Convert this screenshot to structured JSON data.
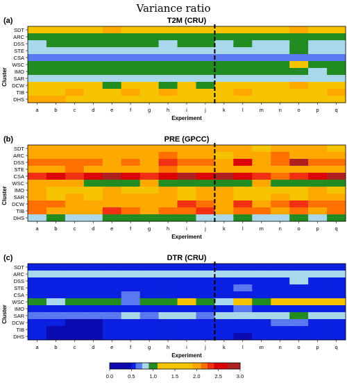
{
  "figure": {
    "title": "Variance ratio"
  },
  "palette": {
    "levels": [
      "#0a0ab0",
      "#0b20e0",
      "#5a78f0",
      "#a8d8ea",
      "#228b22",
      "#f5c400",
      "#ffa800",
      "#ff7000",
      "#f03010",
      "#dd0000",
      "#b02020"
    ],
    "default_level": 3
  },
  "chart_data": [
    {
      "type": "heatmap",
      "panel_label": "(a)",
      "title": "T2M (CRU)",
      "xlabel": "Experiment",
      "ylabel": "Cluster",
      "x": [
        "a",
        "b",
        "c",
        "d",
        "e",
        "f",
        "g",
        "h",
        "i",
        "j",
        "k",
        "l",
        "m",
        "n",
        "o",
        "p",
        "q"
      ],
      "y": [
        "SDT",
        "ARC",
        "DSS",
        "STE",
        "CSA",
        "WSC",
        "IMO",
        "SAR",
        "DCW",
        "TIB",
        "DHS"
      ],
      "divider_after_index": 9,
      "cells": [
        [
          5,
          5,
          5,
          5,
          6,
          5,
          5,
          5,
          5,
          5,
          5,
          5,
          5,
          5,
          6,
          5,
          5
        ],
        [
          4,
          4,
          4,
          4,
          4,
          4,
          4,
          4,
          4,
          4,
          4,
          4,
          4,
          4,
          4,
          4,
          4
        ],
        [
          3,
          4,
          4,
          4,
          4,
          4,
          4,
          3,
          4,
          4,
          3,
          4,
          3,
          3,
          4,
          3,
          3
        ],
        [
          3,
          3,
          3,
          3,
          3,
          3,
          3,
          3,
          3,
          3,
          3,
          3,
          3,
          3,
          4,
          3,
          3
        ],
        [
          2,
          2,
          2,
          2,
          2,
          2,
          2,
          2,
          2,
          2,
          2,
          2,
          2,
          2,
          2,
          2,
          2
        ],
        [
          4,
          4,
          4,
          4,
          4,
          4,
          4,
          4,
          4,
          4,
          4,
          4,
          4,
          4,
          5,
          4,
          4
        ],
        [
          4,
          4,
          4,
          4,
          4,
          4,
          4,
          4,
          4,
          4,
          4,
          4,
          4,
          4,
          4,
          3,
          4
        ],
        [
          3,
          3,
          3,
          3,
          3,
          3,
          3,
          3,
          3,
          3,
          3,
          3,
          3,
          3,
          3,
          3,
          3
        ],
        [
          5,
          5,
          5,
          5,
          4,
          5,
          5,
          4,
          5,
          4,
          5,
          5,
          5,
          5,
          6,
          5,
          5
        ],
        [
          5,
          5,
          6,
          5,
          5,
          6,
          5,
          6,
          5,
          5,
          5,
          6,
          5,
          5,
          5,
          5,
          6
        ],
        [
          6,
          6,
          5,
          5,
          5,
          5,
          5,
          5,
          5,
          5,
          5,
          5,
          5,
          5,
          5,
          5,
          5
        ]
      ]
    },
    {
      "type": "heatmap",
      "panel_label": "(b)",
      "title": "PRE (GPCC)",
      "xlabel": "Experiment",
      "ylabel": "Cluster",
      "x": [
        "a",
        "b",
        "c",
        "d",
        "e",
        "f",
        "g",
        "h",
        "i",
        "j",
        "k",
        "l",
        "m",
        "n",
        "o",
        "p",
        "q"
      ],
      "y": [
        "SDT",
        "ARC",
        "DSS",
        "STE",
        "CSA",
        "WSC",
        "IMO",
        "SAR",
        "DCW",
        "TIB",
        "DHS"
      ],
      "divider_after_index": 9,
      "cells": [
        [
          6,
          6,
          6,
          6,
          6,
          6,
          6,
          6,
          6,
          6,
          6,
          6,
          5,
          6,
          6,
          6,
          5
        ],
        [
          6,
          6,
          6,
          6,
          6,
          6,
          6,
          7,
          6,
          6,
          5,
          6,
          6,
          7,
          6,
          6,
          6
        ],
        [
          7,
          7,
          7,
          7,
          6,
          7,
          6,
          8,
          7,
          7,
          6,
          9,
          6,
          7,
          10,
          7,
          7
        ],
        [
          6,
          6,
          7,
          6,
          6,
          6,
          6,
          7,
          6,
          6,
          6,
          6,
          6,
          6,
          6,
          6,
          6
        ],
        [
          8,
          9,
          8,
          9,
          10,
          9,
          8,
          9,
          10,
          9,
          10,
          9,
          8,
          7,
          8,
          9,
          10
        ],
        [
          6,
          6,
          6,
          4,
          4,
          4,
          6,
          4,
          4,
          4,
          4,
          4,
          6,
          4,
          4,
          4,
          4
        ],
        [
          6,
          5,
          5,
          5,
          6,
          5,
          5,
          6,
          5,
          6,
          6,
          5,
          5,
          5,
          5,
          6,
          5
        ],
        [
          6,
          5,
          6,
          5,
          6,
          6,
          6,
          6,
          5,
          6,
          6,
          5,
          5,
          6,
          5,
          6,
          6
        ],
        [
          7,
          7,
          6,
          6,
          6,
          6,
          6,
          6,
          8,
          7,
          6,
          8,
          6,
          7,
          8,
          7,
          7
        ],
        [
          7,
          6,
          6,
          6,
          8,
          7,
          6,
          7,
          7,
          8,
          6,
          7,
          7,
          6,
          7,
          6,
          7
        ],
        [
          3,
          4,
          3,
          3,
          4,
          4,
          4,
          4,
          4,
          3,
          3,
          4,
          3,
          3,
          4,
          3,
          4
        ]
      ]
    },
    {
      "type": "heatmap",
      "panel_label": "(c)",
      "title": "DTR (CRU)",
      "xlabel": "Experiment",
      "ylabel": "Cluster",
      "x": [
        "a",
        "b",
        "c",
        "d",
        "e",
        "f",
        "g",
        "h",
        "i",
        "j",
        "k",
        "l",
        "m",
        "n",
        "o",
        "p",
        "q"
      ],
      "y": [
        "SDT",
        "ARC",
        "DSS",
        "STE",
        "CSA",
        "WSC",
        "IMO",
        "SAR",
        "DCW",
        "TIB",
        "DHS"
      ],
      "divider_after_index": 9,
      "cells": [
        [
          1,
          1,
          1,
          1,
          1,
          1,
          1,
          1,
          1,
          1,
          1,
          1,
          1,
          1,
          1,
          1,
          1
        ],
        [
          3,
          3,
          3,
          3,
          3,
          3,
          3,
          3,
          3,
          3,
          3,
          3,
          3,
          3,
          3,
          3,
          3
        ],
        [
          1,
          1,
          1,
          1,
          1,
          1,
          1,
          1,
          1,
          1,
          1,
          1,
          1,
          1,
          3,
          1,
          1
        ],
        [
          1,
          1,
          1,
          1,
          1,
          1,
          1,
          1,
          1,
          1,
          1,
          2,
          1,
          1,
          1,
          1,
          1
        ],
        [
          1,
          1,
          1,
          1,
          1,
          2,
          1,
          1,
          1,
          1,
          1,
          1,
          1,
          1,
          1,
          1,
          1
        ],
        [
          4,
          3,
          4,
          4,
          4,
          2,
          4,
          4,
          5,
          4,
          3,
          5,
          4,
          5,
          5,
          5,
          5
        ],
        [
          1,
          1,
          1,
          1,
          1,
          1,
          1,
          1,
          1,
          1,
          1,
          2,
          1,
          1,
          1,
          1,
          1
        ],
        [
          2,
          2,
          2,
          2,
          2,
          3,
          2,
          3,
          3,
          2,
          3,
          3,
          3,
          3,
          4,
          3,
          3
        ],
        [
          1,
          1,
          0,
          0,
          1,
          1,
          1,
          1,
          1,
          1,
          1,
          1,
          1,
          2,
          2,
          1,
          1
        ],
        [
          1,
          0,
          0,
          0,
          1,
          1,
          1,
          1,
          1,
          1,
          1,
          1,
          1,
          1,
          1,
          1,
          1
        ],
        [
          1,
          0,
          0,
          0,
          1,
          1,
          1,
          1,
          1,
          1,
          1,
          0,
          1,
          1,
          1,
          1,
          1
        ]
      ]
    }
  ],
  "colorbar": {
    "tick_labels": [
      "0.0",
      "0.5",
      "1.0",
      "1.5",
      "2.0",
      "2.5",
      "3.0"
    ],
    "tick_values": [
      0.0,
      0.5,
      1.0,
      1.5,
      2.0,
      2.5,
      3.0
    ],
    "bins": [
      {
        "from": 0.0,
        "to": 0.5,
        "level": 0
      },
      {
        "from": 0.5,
        "to": 0.6,
        "level": 1
      },
      {
        "from": 0.6,
        "to": 0.75,
        "level": 2
      },
      {
        "from": 0.75,
        "to": 0.9,
        "level": 3
      },
      {
        "from": 0.9,
        "to": 1.1,
        "level": 4
      },
      {
        "from": 1.1,
        "to": 1.9,
        "level": 5
      },
      {
        "from": 1.9,
        "to": 2.1,
        "level": 6
      },
      {
        "from": 2.1,
        "to": 2.25,
        "level": 7
      },
      {
        "from": 2.25,
        "to": 2.4,
        "level": 8
      },
      {
        "from": 2.4,
        "to": 2.7,
        "level": 9
      },
      {
        "from": 2.7,
        "to": 3.0,
        "level": 10
      }
    ]
  }
}
